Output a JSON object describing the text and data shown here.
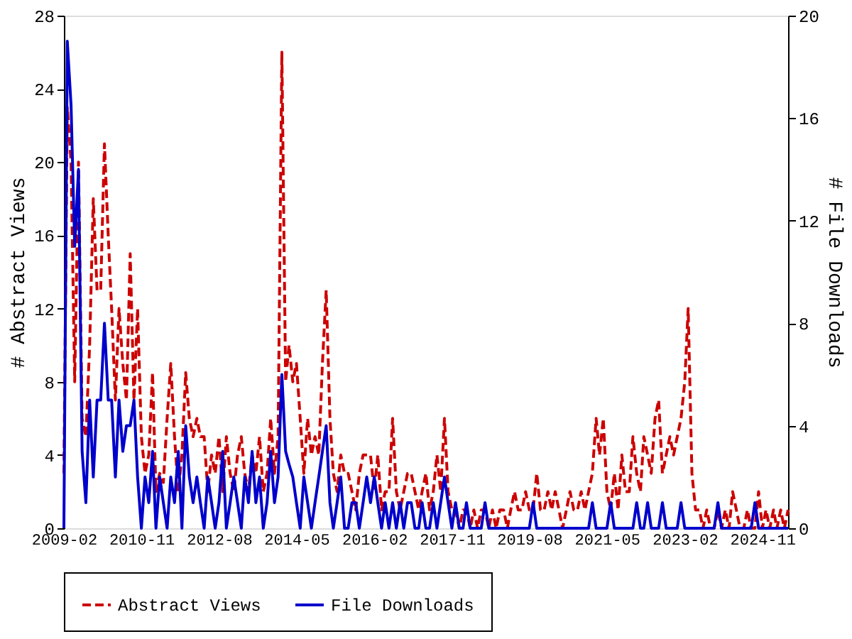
{
  "chart_data": {
    "type": "line",
    "xlabel": null,
    "ylabel": "# Abstract Views",
    "y2label": "# File Downloads",
    "x": [
      "2009-02",
      "2009-03",
      "2009-04",
      "2009-05",
      "2009-06",
      "2009-07",
      "2009-08",
      "2009-09",
      "2009-10",
      "2009-11",
      "2009-12",
      "2010-01",
      "2010-02",
      "2010-03",
      "2010-04",
      "2010-05",
      "2010-06",
      "2010-07",
      "2010-08",
      "2010-09",
      "2010-10",
      "2010-11",
      "2010-12",
      "2011-01",
      "2011-02",
      "2011-03",
      "2011-04",
      "2011-05",
      "2011-06",
      "2011-07",
      "2011-08",
      "2011-09",
      "2011-10",
      "2011-11",
      "2011-12",
      "2012-01",
      "2012-02",
      "2012-03",
      "2012-04",
      "2012-05",
      "2012-06",
      "2012-07",
      "2012-08",
      "2012-09",
      "2012-10",
      "2012-11",
      "2012-12",
      "2013-01",
      "2013-02",
      "2013-03",
      "2013-04",
      "2013-05",
      "2013-06",
      "2013-07",
      "2013-08",
      "2013-09",
      "2013-10",
      "2013-11",
      "2013-12",
      "2014-01",
      "2014-02",
      "2014-03",
      "2014-04",
      "2014-05",
      "2014-06",
      "2014-07",
      "2014-08",
      "2014-09",
      "2014-10",
      "2014-11",
      "2014-12",
      "2015-01",
      "2015-02",
      "2015-03",
      "2015-04",
      "2015-05",
      "2015-06",
      "2015-07",
      "2015-08",
      "2015-09",
      "2015-10",
      "2015-11",
      "2015-12",
      "2016-01",
      "2016-02",
      "2016-03",
      "2016-04",
      "2016-05",
      "2016-06",
      "2016-07",
      "2016-08",
      "2016-09",
      "2016-10",
      "2016-11",
      "2016-12",
      "2017-01",
      "2017-02",
      "2017-03",
      "2017-04",
      "2017-05",
      "2017-06",
      "2017-07",
      "2017-08",
      "2017-09",
      "2017-10",
      "2017-11",
      "2017-12",
      "2018-01",
      "2018-02",
      "2018-03",
      "2018-04",
      "2018-05",
      "2018-06",
      "2018-07",
      "2018-08",
      "2018-09",
      "2018-10",
      "2018-11",
      "2018-12",
      "2019-01",
      "2019-02",
      "2019-03",
      "2019-04",
      "2019-05",
      "2019-06",
      "2019-07",
      "2019-08",
      "2019-09",
      "2019-10",
      "2019-11",
      "2019-12",
      "2020-01",
      "2020-02",
      "2020-03",
      "2020-04",
      "2020-05",
      "2020-06",
      "2020-07",
      "2020-08",
      "2020-09",
      "2020-10",
      "2020-11",
      "2020-12",
      "2021-01",
      "2021-02",
      "2021-03",
      "2021-04",
      "2021-05",
      "2021-06",
      "2021-07",
      "2021-08",
      "2021-09",
      "2021-10",
      "2021-11",
      "2021-12",
      "2022-01",
      "2022-02",
      "2022-03",
      "2022-04",
      "2022-05",
      "2022-06",
      "2022-07",
      "2022-08",
      "2022-09",
      "2022-10",
      "2022-11",
      "2022-12",
      "2023-01",
      "2023-02",
      "2023-03",
      "2023-04",
      "2023-05",
      "2023-06",
      "2023-07",
      "2023-08",
      "2023-09",
      "2023-10",
      "2023-11",
      "2023-12",
      "2024-01",
      "2024-02",
      "2024-03",
      "2024-04",
      "2024-05",
      "2024-06",
      "2024-07",
      "2024-08",
      "2024-09",
      "2024-10",
      "2024-11",
      "2024-12",
      "2025-01",
      "2025-02",
      "2025-03",
      "2025-04",
      "2025-05",
      "2025-06"
    ],
    "series": [
      {
        "name": "Abstract Views",
        "color": "#cc0000",
        "line_style": "dashed",
        "values": [
          3,
          23,
          20,
          8,
          20,
          6,
          5,
          10,
          18,
          13,
          13,
          21,
          16,
          12,
          7,
          12,
          9,
          7,
          15,
          7,
          12,
          5,
          3,
          4,
          8.5,
          2,
          3,
          2.5,
          6,
          9,
          5,
          2,
          4,
          8.5,
          6,
          5,
          6,
          5,
          5,
          2,
          4,
          3,
          5,
          2,
          5,
          3,
          2,
          4,
          5,
          3,
          2,
          4,
          3,
          5,
          2,
          3,
          6,
          3,
          5,
          26,
          8,
          10,
          8,
          9,
          6,
          3,
          6,
          4,
          5,
          4,
          9,
          13,
          6,
          3,
          2,
          4,
          3,
          3,
          2,
          1,
          3,
          4,
          4,
          4,
          2,
          4,
          1,
          2,
          2,
          6,
          2,
          1,
          2,
          3,
          3,
          2,
          1,
          2,
          3,
          1,
          2,
          4,
          2,
          6,
          2,
          1,
          1,
          0,
          1,
          1,
          0,
          1,
          0,
          1,
          1,
          0,
          1,
          0,
          1,
          1,
          0,
          1,
          2,
          1,
          1,
          2,
          1,
          1,
          3,
          1,
          1,
          2,
          1,
          2,
          1,
          0,
          1,
          2,
          1,
          1,
          2,
          1,
          2,
          3,
          6,
          4,
          6,
          2,
          1,
          3,
          1,
          4,
          2,
          2,
          5,
          3,
          2,
          5,
          4,
          3,
          6,
          7,
          3,
          4,
          5,
          4,
          5,
          6,
          8,
          12,
          3,
          1,
          1,
          0,
          1,
          0,
          0,
          1,
          0,
          1,
          0,
          2,
          1,
          0,
          0,
          1,
          0,
          0,
          2,
          0,
          1,
          0,
          1,
          0,
          1,
          0,
          1
        ]
      },
      {
        "name": "File Downloads",
        "color": "#0000cc",
        "line_style": "solid",
        "axis": "y2",
        "values": [
          0,
          19,
          16.5,
          11,
          14,
          3,
          1,
          5,
          2,
          5,
          5,
          8,
          5,
          5,
          2,
          5,
          3,
          4,
          4,
          5,
          2,
          0,
          2,
          1,
          3,
          0,
          2,
          1,
          0,
          2,
          1,
          3,
          0,
          4,
          2,
          1,
          2,
          1,
          0,
          2,
          1,
          0,
          1,
          3,
          0,
          1,
          2,
          1,
          0,
          2,
          1,
          3,
          1,
          2,
          0,
          1,
          3,
          1,
          2,
          6,
          3,
          2.5,
          2,
          1,
          0,
          2,
          1,
          0,
          1,
          2,
          3,
          4,
          1,
          0,
          1,
          2,
          0,
          0,
          1,
          1,
          0,
          1,
          2,
          1,
          2,
          1,
          0,
          1,
          0,
          1,
          0,
          1,
          0,
          1,
          1,
          0,
          0,
          1,
          0,
          0,
          1,
          0,
          1,
          2,
          1,
          0,
          1,
          0,
          0,
          1,
          0,
          0,
          0,
          0,
          1,
          0,
          0,
          0,
          0,
          0,
          0,
          0,
          0,
          0,
          0,
          0,
          0,
          1,
          0,
          0,
          0,
          0,
          0,
          0,
          0,
          0,
          0,
          0,
          0,
          0,
          0,
          0,
          0,
          1,
          0,
          0,
          0,
          0,
          1,
          0,
          0,
          0,
          0,
          0,
          0,
          1,
          0,
          0,
          1,
          0,
          0,
          0,
          1,
          0,
          0,
          0,
          0,
          1,
          0,
          0,
          0,
          0,
          0,
          0,
          0,
          0,
          0,
          1,
          0,
          0,
          0,
          0,
          0,
          0,
          0,
          0,
          0,
          1,
          0,
          0,
          0,
          0,
          0,
          0,
          0,
          0,
          0
        ]
      }
    ],
    "xlim": [
      "2009-02",
      "2025-06"
    ],
    "xticks": [
      "2009-02",
      "2010-11",
      "2012-08",
      "2014-05",
      "2016-02",
      "2017-11",
      "2019-08",
      "2021-05",
      "2023-02",
      "2024-11"
    ],
    "ylim": [
      0,
      28
    ],
    "yticks": [
      0,
      4,
      8,
      12,
      16,
      20,
      24,
      28
    ],
    "y2lim": [
      0,
      20
    ],
    "y2ticks": [
      0,
      4,
      8,
      12,
      16,
      20
    ],
    "grid": false,
    "legend": "bottom",
    "marker": "none"
  }
}
